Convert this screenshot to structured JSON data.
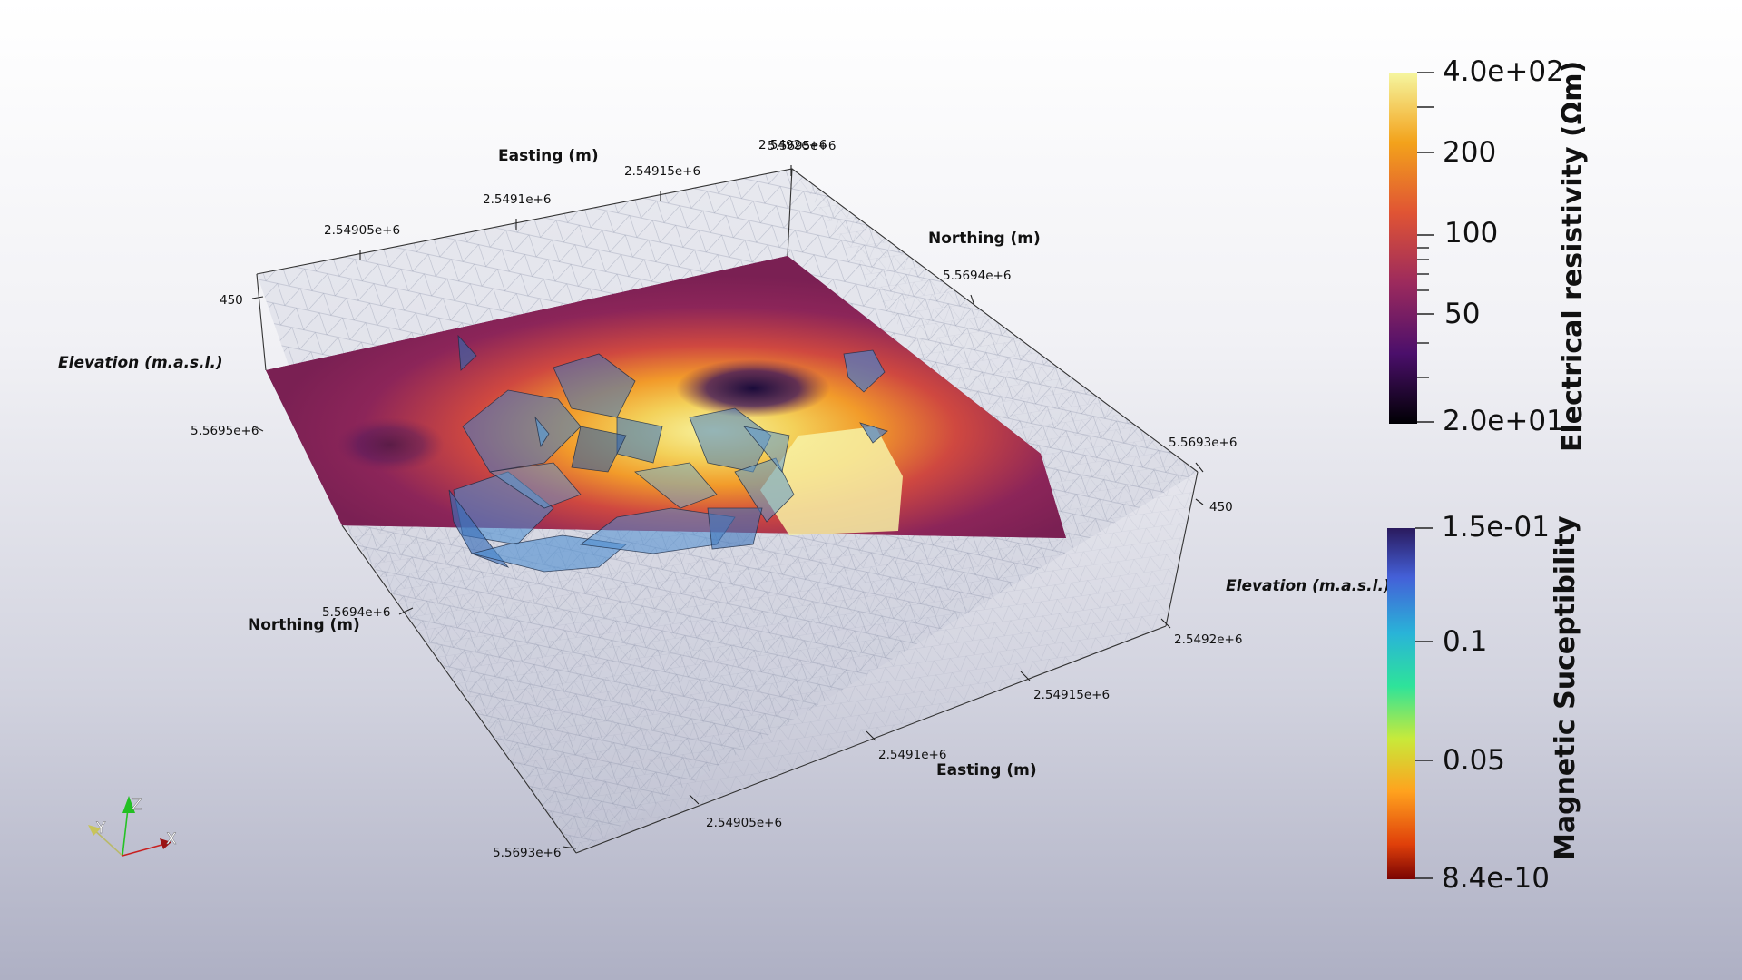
{
  "axes": {
    "top_easting_title": "Easting (m)",
    "top_easting_ticks": [
      "2.54905e+6",
      "2.5491e+6",
      "2.54915e+6",
      "2.5492e+6"
    ],
    "top_northing_title": "Northing (m)",
    "top_northing_ticks": [
      "5.5695e+6",
      "5.5694e+6",
      "5.5693e+6"
    ],
    "left_elevation_title": "Elevation (m.a.s.l.)",
    "left_elevation_tick": "450",
    "left_northing_tick": "5.5695e+6",
    "bottom_northing_title": "Northing (m)",
    "bottom_northing_ticks": [
      "5.5694e+6",
      "5.5693e+6"
    ],
    "bottom_easting_title": "Easting (m)",
    "bottom_easting_ticks": [
      "2.54905e+6",
      "2.5491e+6",
      "2.54915e+6",
      "2.5492e+6"
    ],
    "right_elevation_title": "Elevation (m.a.s.l.)",
    "right_elevation_tick": "450"
  },
  "colorbar_resistivity": {
    "title": "Electrical resistivity (Ωm)",
    "labels": [
      "4.0e+02",
      "200",
      "100",
      "50",
      "2.0e+01"
    ],
    "colors": [
      "#f5f6a0",
      "#f3a21b",
      "#e05434",
      "#9c2a5d",
      "#4b0f6b",
      "#000004"
    ]
  },
  "colorbar_susceptibility": {
    "title": "Magnetic Suceptibility",
    "labels": [
      "1.5e-01",
      "0.1",
      "0.05",
      "8.4e-10"
    ],
    "colors": [
      "#2a1a5e",
      "#4460d8",
      "#29b4d8",
      "#2ee39a",
      "#c8ea3a",
      "#ffa21e",
      "#e0400a",
      "#7a0403"
    ]
  },
  "orientation_axes": {
    "x": "X",
    "y": "Y",
    "z": "Z"
  }
}
